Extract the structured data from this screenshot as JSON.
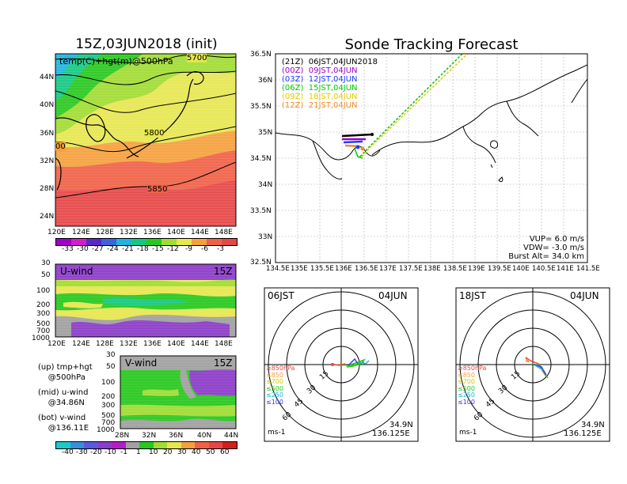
{
  "left_panel": {
    "title": "15Z,03JUN2018 (init)",
    "field_label": "temp(C)+hgt(m)@500hPa",
    "lat_labels": [
      "44N",
      "40N",
      "36N",
      "32N",
      "28N",
      "24N"
    ],
    "lon_labels": [
      "120E",
      "124E",
      "128E",
      "132E",
      "136E",
      "140E",
      "144E",
      "148E"
    ],
    "contour_labels": [
      "5700",
      "5800",
      "5850",
      "00"
    ],
    "colorbar_labels": [
      "-33",
      "-30",
      "-27",
      "-24",
      "-21",
      "-18",
      "-15",
      "-12",
      "-9",
      "-6",
      "-3"
    ],
    "colorbar_colors": [
      "#a000c8",
      "#d21ec8",
      "#5a28c8",
      "#3c64dc",
      "#1eb4dc",
      "#14c882",
      "#28c81e",
      "#a0dc32",
      "#e6e650",
      "#f5a03c",
      "#f06046",
      "#e64646"
    ]
  },
  "uwind_panel": {
    "label": "U-wind",
    "time": "15Z",
    "pressure_labels": [
      "30",
      "50",
      "100",
      "200",
      "300",
      "500",
      "700",
      "1000"
    ],
    "lon_labels": [
      "120E",
      "124E",
      "128E",
      "132E",
      "136E",
      "140E",
      "144E",
      "148E"
    ]
  },
  "vwind_panel": {
    "label": "V-wind",
    "time": "15Z",
    "pressure_labels": [
      "30",
      "50",
      "100",
      "200",
      "300",
      "500",
      "700",
      "1000"
    ],
    "lat_labels": [
      "28N",
      "32N",
      "36N",
      "40N",
      "44N"
    ]
  },
  "notes": {
    "up": "(up) tmp+hgt\n    @500hPa",
    "mid": "(mid) u-wind\n    @34.86N",
    "bot": "(bot) v-wind\n    @136.11E"
  },
  "wind_colorbar": {
    "labels": [
      "-40",
      "-30",
      "-20",
      "-10",
      "-1",
      "1",
      "10",
      "20",
      "30",
      "40",
      "50",
      "60"
    ],
    "colors": [
      "#1ec8c8",
      "#3c8cdc",
      "#5a5adc",
      "#8c3cc8",
      "#b41ec8",
      "#a0a0a0",
      "#28c81e",
      "#a0dc32",
      "#e6e650",
      "#f5a03c",
      "#f06046",
      "#e64646",
      "#d21e1e"
    ]
  },
  "sonde_map": {
    "title": "Sonde Tracking Forecast",
    "lat_labels": [
      "36.5N",
      "36N",
      "35.5N",
      "35N",
      "34.5N",
      "34N",
      "33.5N",
      "33N",
      "32.5N"
    ],
    "lon_labels": [
      "134.5E",
      "135E",
      "135.5E",
      "136E",
      "136.5E",
      "137E",
      "137.5E",
      "138E",
      "138.5E",
      "139E",
      "139.5E",
      "140E",
      "140.5E",
      "141E",
      "141.5E"
    ],
    "legend": [
      {
        "label": "(21Z)  06JST,04JUN2018",
        "color": "#000000"
      },
      {
        "label": "(00Z)  09JST,04JUN",
        "color": "#a000c8"
      },
      {
        "label": "(03Z)  12JST,04JUN",
        "color": "#1e3cff"
      },
      {
        "label": "(06Z)  15JST,04JUN",
        "color": "#00c800"
      },
      {
        "label": "(09Z)  18JST,04JUN",
        "color": "#e6c800"
      },
      {
        "label": "(12Z)  21JST,04JUN",
        "color": "#f08c28"
      }
    ],
    "vup": "VUP=  6.0 m/s",
    "vdw": "VDW= -3.0 m/s",
    "burst": "Burst Alt= 34.0 km"
  },
  "hodograph_left": {
    "time": "06JST",
    "date": "04JUN",
    "ring_labels": [
      "15",
      "30",
      "45",
      "60"
    ],
    "level_labels": [
      {
        "label": "≥850hPa",
        "color": "#e64646"
      },
      {
        "label": "≤850",
        "color": "#f5a03c"
      },
      {
        "label": "≤700",
        "color": "#d2c800"
      },
      {
        "label": "≤500",
        "color": "#28c81e"
      },
      {
        "label": "≤250",
        "color": "#1eb4dc"
      },
      {
        "label": "≤100",
        "color": "#3c3cdc"
      }
    ],
    "units": "ms-1",
    "lat": "34.9N",
    "lon": "136.125E"
  },
  "hodograph_right": {
    "time": "18JST",
    "date": "04JUN",
    "ring_labels": [
      "15",
      "30",
      "45",
      "60"
    ],
    "level_labels": [
      {
        "label": "≥850hPa",
        "color": "#e64646"
      },
      {
        "label": "≤850",
        "color": "#f5a03c"
      },
      {
        "label": "≤700",
        "color": "#d2c800"
      },
      {
        "label": "≤500",
        "color": "#28c81e"
      },
      {
        "label": "≤250",
        "color": "#1eb4dc"
      },
      {
        "label": "≤100",
        "color": "#3c3cdc"
      }
    ],
    "units": "ms-1",
    "lat": "34.9N",
    "lon": "136.125E"
  }
}
